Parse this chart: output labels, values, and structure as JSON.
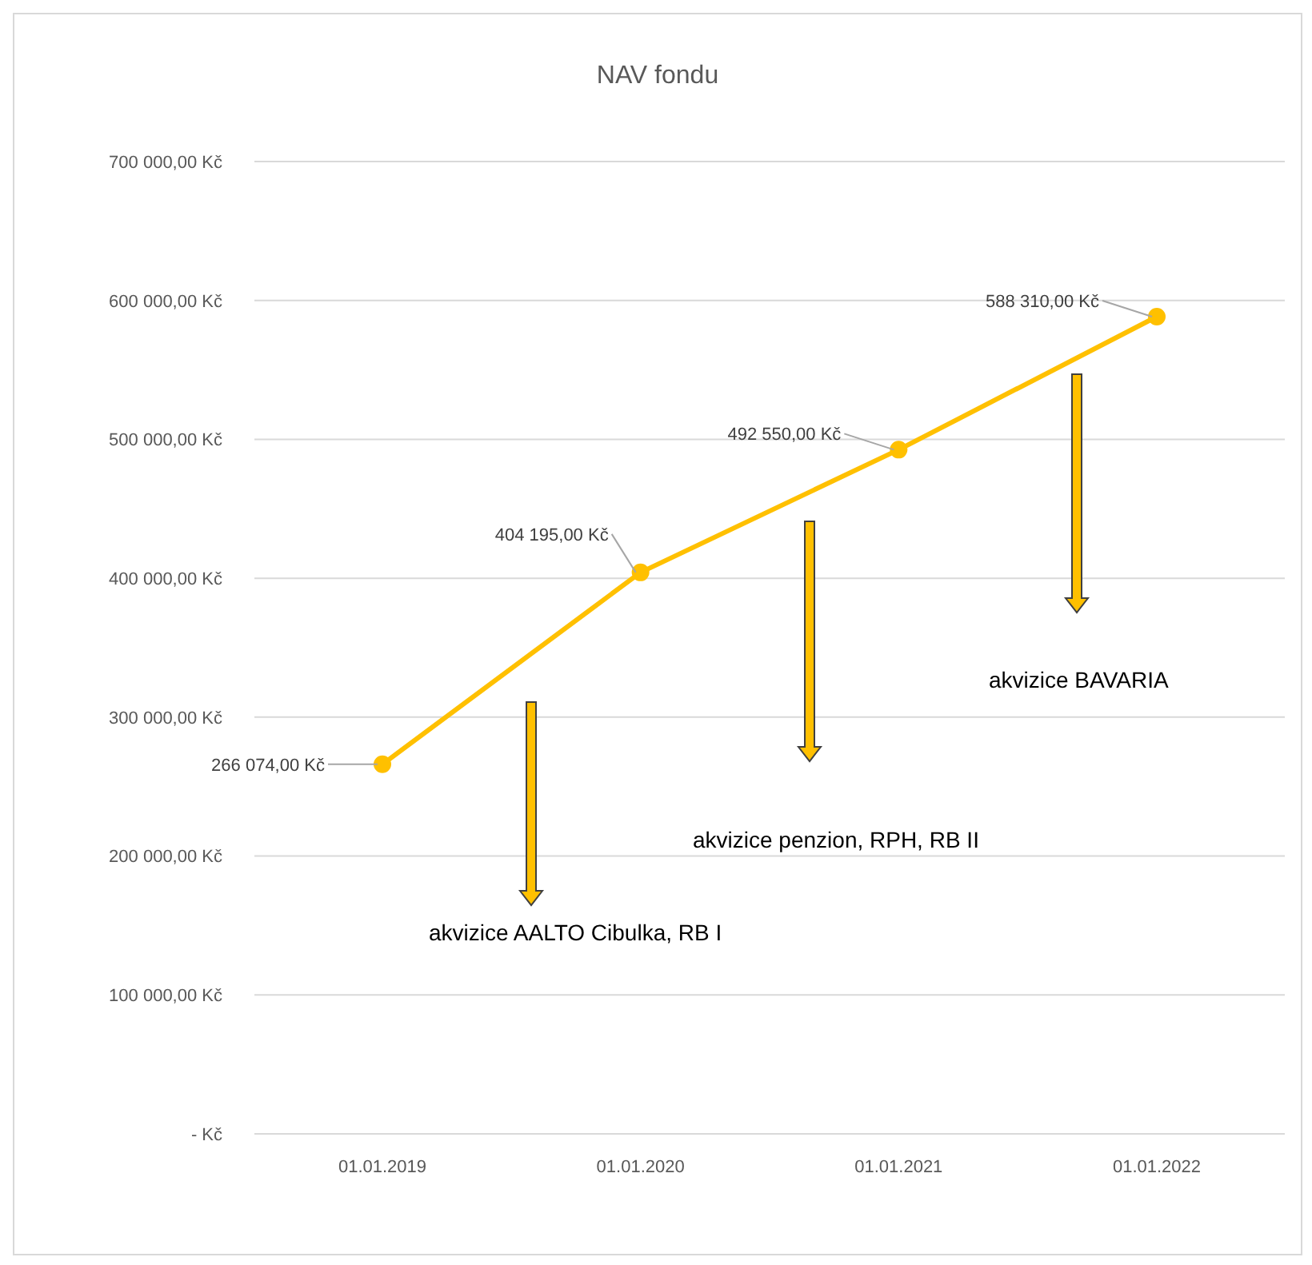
{
  "chart_data": {
    "type": "line",
    "title": "NAV fondu",
    "categories": [
      "01.01.2019",
      "01.01.2020",
      "01.01.2021",
      "01.01.2022"
    ],
    "values": [
      266074,
      404195,
      492550,
      588310
    ],
    "value_labels": [
      "266 074,00 Kč",
      "404 195,00 Kč",
      "492 550,00 Kč",
      "588 310,00 Kč"
    ],
    "color": "#ffc000",
    "marker": "circle",
    "grid": "y",
    "ylim": [
      0,
      700000
    ],
    "yticks": [
      {
        "value": 0,
        "label": "-  Kč"
      },
      {
        "value": 100000,
        "label": "100 000,00 Kč"
      },
      {
        "value": 200000,
        "label": "200 000,00 Kč"
      },
      {
        "value": 300000,
        "label": "300 000,00 Kč"
      },
      {
        "value": 400000,
        "label": "400 000,00 Kč"
      },
      {
        "value": 500000,
        "label": "500 000,00 Kč"
      },
      {
        "value": 600000,
        "label": "600 000,00 Kč"
      },
      {
        "value": 700000,
        "label": "700 000,00 Kč"
      }
    ],
    "annotations": [
      "akvizice AALTO Cibulka, RB I",
      "akvizice penzion, RPH, RB II",
      "akvizice BAVARIA"
    ]
  }
}
